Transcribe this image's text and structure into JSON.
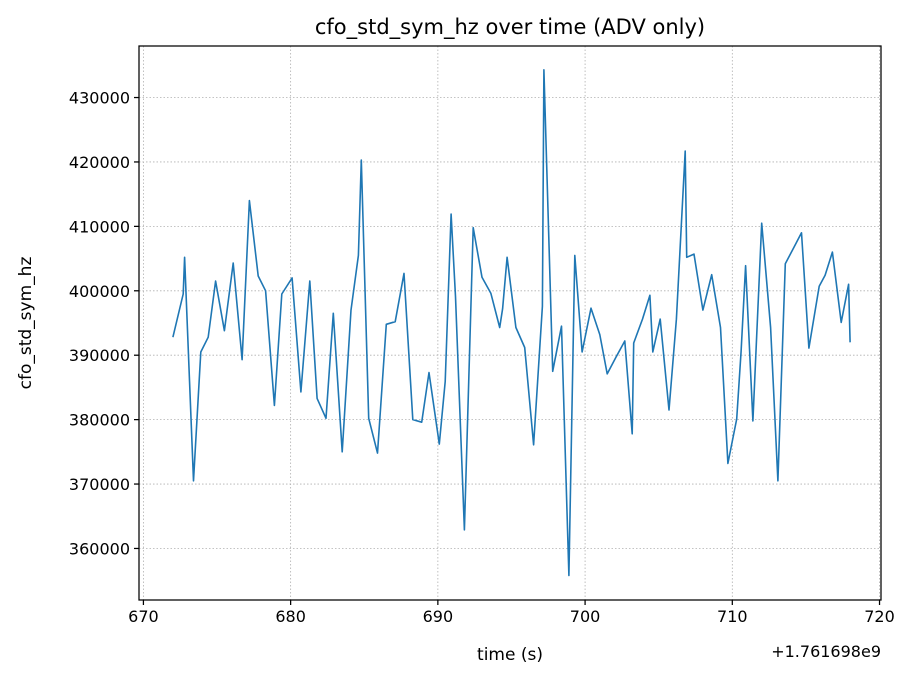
{
  "chart_data": {
    "type": "line",
    "title": "cfo_std_sym_hz over time (ADV only)",
    "xlabel": "time (s)",
    "ylabel": "cfo_std_sym_hz",
    "x_offset_label": "+1.761698e9",
    "xlim": [
      669.7,
      720.1
    ],
    "ylim": [
      352000,
      438000
    ],
    "xticks": [
      670,
      680,
      690,
      700,
      710,
      720
    ],
    "yticks": [
      360000,
      370000,
      380000,
      390000,
      400000,
      410000,
      420000,
      430000
    ],
    "grid": true,
    "line_color": "#1f77b4",
    "series": [
      {
        "x": [
          672.0,
          672.7,
          672.8,
          673.4,
          673.9,
          674.4,
          674.9,
          675.5,
          676.1,
          676.7,
          677.2,
          677.8,
          678.3,
          678.9,
          679.4,
          680.1,
          680.7,
          681.3,
          681.8,
          682.4,
          682.9,
          683.5,
          684.1,
          684.6,
          684.8,
          685.3,
          685.9,
          686.5,
          687.1,
          687.7,
          688.3,
          688.9,
          689.4,
          690.1,
          690.5,
          690.9,
          691.2,
          691.8,
          692.4,
          693.0,
          693.6,
          694.2,
          694.4,
          694.7,
          695.3,
          695.9,
          696.5,
          697.1,
          697.2,
          697.8,
          698.4,
          698.9,
          699.3,
          699.8,
          700.4,
          701.0,
          701.5,
          702.1,
          702.7,
          703.2,
          703.3,
          703.9,
          704.4,
          704.6,
          705.1,
          705.7,
          706.2,
          706.8,
          706.9,
          707.4,
          708.0,
          708.6,
          709.2,
          709.7,
          710.3,
          710.6,
          710.9,
          711.4,
          712.0,
          712.6,
          713.1,
          713.6,
          714.2,
          714.7,
          715.2,
          715.9,
          716.3,
          716.8,
          717.4,
          717.9,
          718.0
        ],
        "y": [
          392800,
          399500,
          405200,
          370500,
          390500,
          392800,
          401500,
          393800,
          404300,
          389300,
          414000,
          402300,
          400000,
          382200,
          399500,
          402000,
          384300,
          401500,
          383300,
          380200,
          396500,
          375000,
          397000,
          405500,
          420300,
          380200,
          374800,
          394800,
          395200,
          402700,
          380000,
          379600,
          387300,
          376200,
          385900,
          411900,
          399100,
          362900,
          409800,
          402100,
          399600,
          394300,
          397200,
          405200,
          394300,
          391200,
          376100,
          397600,
          434300,
          387500,
          394500,
          355800,
          405500,
          390500,
          397300,
          393200,
          387100,
          389700,
          392200,
          377800,
          391900,
          395600,
          399300,
          390500,
          395600,
          381500,
          395600,
          421700,
          405200,
          405700,
          397000,
          402500,
          394300,
          373200,
          380100,
          390600,
          403900,
          379800,
          410500,
          394300,
          370500,
          404200,
          406800,
          409000,
          391100,
          400700,
          402400,
          406000,
          395100,
          401000,
          392000
        ]
      }
    ]
  }
}
